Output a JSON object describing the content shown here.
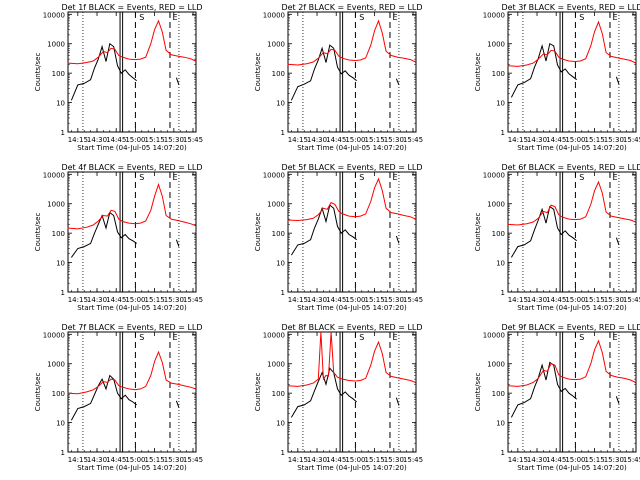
{
  "colors": {
    "events": "#000000",
    "lld": "#ff0000",
    "axes": "#000000"
  },
  "shared": {
    "xlabel": "Start Time (04-Jul-05 14:07:20)",
    "ylabel": "Counts/sec",
    "x_ticks": [
      "14:15",
      "14:30",
      "14:45",
      "15:00",
      "15:15",
      "15:30",
      "15:45"
    ],
    "y_ticks": [
      "1",
      "10",
      "100",
      "1000",
      "10000"
    ],
    "xlim": [
      "14:07:20",
      "15:47:20"
    ],
    "ylim": [
      1,
      12000
    ],
    "y_scale": "log",
    "markers": {
      "dotted": [
        "14:19",
        "15:34"
      ],
      "solid": [
        "14:48",
        "14:50"
      ],
      "dashed": [
        "15:00",
        "15:27"
      ],
      "letters": [
        {
          "text": "S",
          "at": "15:03"
        },
        {
          "text": "E",
          "at": "15:29"
        }
      ]
    }
  },
  "chart_data": [
    {
      "type": "line",
      "title": "Det 1f BLACK = Events, RED = LLD",
      "series": [
        {
          "name": "Events",
          "x": [
            "14:10",
            "14:15",
            "14:20",
            "14:25",
            "14:28",
            "14:31",
            "14:34",
            "14:37",
            "14:40",
            "14:43",
            "14:46",
            "14:49",
            "14:52",
            "14:55",
            "14:58",
            "15:01",
            "15:32",
            "15:34"
          ],
          "y": [
            12,
            40,
            45,
            60,
            150,
            300,
            800,
            250,
            1000,
            800,
            180,
            100,
            130,
            90,
            70,
            55,
            70,
            40
          ]
        },
        {
          "name": "LLD",
          "x": [
            "14:07",
            "14:15",
            "14:22",
            "14:27",
            "14:31",
            "14:35",
            "14:38",
            "14:41",
            "14:44",
            "14:47",
            "14:50",
            "14:55",
            "15:00",
            "15:04",
            "15:08",
            "15:12",
            "15:15",
            "15:18",
            "15:21",
            "15:24",
            "15:28",
            "15:33",
            "15:38",
            "15:43",
            "15:47"
          ],
          "y": [
            220,
            210,
            230,
            260,
            350,
            550,
            500,
            700,
            650,
            400,
            350,
            300,
            290,
            300,
            350,
            1000,
            3000,
            6000,
            2500,
            600,
            420,
            380,
            350,
            310,
            260
          ]
        }
      ]
    },
    {
      "type": "line",
      "title": "Det 2f BLACK = Events, RED = LLD",
      "series": [
        {
          "name": "Events",
          "x": [
            "14:10",
            "14:15",
            "14:20",
            "14:25",
            "14:28",
            "14:31",
            "14:34",
            "14:37",
            "14:40",
            "14:43",
            "14:46",
            "14:49",
            "14:52",
            "14:55",
            "14:58",
            "15:01",
            "15:32",
            "15:34"
          ],
          "y": [
            12,
            35,
            42,
            55,
            140,
            280,
            700,
            230,
            900,
            700,
            160,
            95,
            120,
            85,
            70,
            55,
            65,
            40
          ]
        },
        {
          "name": "LLD",
          "x": [
            "14:07",
            "14:15",
            "14:22",
            "14:27",
            "14:31",
            "14:35",
            "14:38",
            "14:41",
            "14:44",
            "14:47",
            "14:50",
            "14:55",
            "15:00",
            "15:04",
            "15:08",
            "15:12",
            "15:15",
            "15:18",
            "15:21",
            "15:24",
            "15:28",
            "15:33",
            "15:38",
            "15:43",
            "15:47"
          ],
          "y": [
            200,
            190,
            210,
            240,
            320,
            500,
            460,
            650,
            600,
            380,
            320,
            280,
            270,
            280,
            330,
            900,
            2800,
            6000,
            2300,
            550,
            400,
            350,
            320,
            290,
            240
          ]
        }
      ]
    },
    {
      "type": "line",
      "title": "Det 3f BLACK = Events, RED = LLD",
      "series": [
        {
          "name": "Events",
          "x": [
            "14:10",
            "14:15",
            "14:20",
            "14:25",
            "14:28",
            "14:31",
            "14:34",
            "14:37",
            "14:40",
            "14:43",
            "14:46",
            "14:49",
            "14:52",
            "14:55",
            "14:58",
            "15:01",
            "15:32",
            "15:34"
          ],
          "y": [
            15,
            40,
            48,
            65,
            160,
            320,
            850,
            260,
            1000,
            850,
            190,
            110,
            140,
            95,
            75,
            60,
            75,
            42
          ]
        },
        {
          "name": "LLD",
          "x": [
            "14:07",
            "14:15",
            "14:22",
            "14:27",
            "14:31",
            "14:35",
            "14:38",
            "14:41",
            "14:44",
            "14:47",
            "14:50",
            "14:55",
            "15:00",
            "15:04",
            "15:08",
            "15:12",
            "15:15",
            "15:18",
            "15:21",
            "15:24",
            "15:28",
            "15:33",
            "15:38",
            "15:43",
            "15:47"
          ],
          "y": [
            180,
            170,
            190,
            220,
            300,
            450,
            420,
            600,
            560,
            350,
            300,
            260,
            250,
            260,
            310,
            850,
            2600,
            5500,
            2200,
            500,
            370,
            330,
            300,
            270,
            220
          ]
        }
      ]
    },
    {
      "type": "line",
      "title": "Det 4f BLACK = Events, RED = LLD",
      "series": [
        {
          "name": "Events",
          "x": [
            "14:10",
            "14:15",
            "14:20",
            "14:25",
            "14:28",
            "14:31",
            "14:34",
            "14:37",
            "14:40",
            "14:43",
            "14:46",
            "14:49",
            "14:52",
            "14:55",
            "14:58",
            "15:01",
            "15:32",
            "15:34"
          ],
          "y": [
            15,
            30,
            35,
            45,
            100,
            200,
            400,
            150,
            500,
            400,
            110,
            70,
            90,
            65,
            55,
            45,
            60,
            35
          ]
        },
        {
          "name": "LLD",
          "x": [
            "14:07",
            "14:15",
            "14:22",
            "14:27",
            "14:31",
            "14:35",
            "14:38",
            "14:41",
            "14:44",
            "14:47",
            "14:50",
            "14:55",
            "15:00",
            "15:04",
            "15:08",
            "15:12",
            "15:15",
            "15:18",
            "15:21",
            "15:24",
            "15:28",
            "15:33",
            "15:38",
            "15:43",
            "15:47"
          ],
          "y": [
            150,
            140,
            160,
            190,
            260,
            400,
            380,
            600,
            550,
            300,
            250,
            220,
            210,
            220,
            260,
            600,
            1800,
            4500,
            1800,
            400,
            300,
            270,
            240,
            210,
            180
          ]
        }
      ]
    },
    {
      "type": "line",
      "title": "Det 5f BLACK = Events, RED = LLD",
      "series": [
        {
          "name": "Events",
          "x": [
            "14:10",
            "14:15",
            "14:20",
            "14:25",
            "14:28",
            "14:31",
            "14:34",
            "14:37",
            "14:40",
            "14:43",
            "14:46",
            "14:49",
            "14:52",
            "14:55",
            "14:58",
            "15:01",
            "15:32",
            "15:34"
          ],
          "y": [
            18,
            40,
            45,
            60,
            150,
            300,
            700,
            250,
            900,
            700,
            170,
            100,
            130,
            90,
            75,
            60,
            80,
            45
          ]
        },
        {
          "name": "LLD",
          "x": [
            "14:07",
            "14:15",
            "14:22",
            "14:27",
            "14:31",
            "14:35",
            "14:38",
            "14:41",
            "14:44",
            "14:47",
            "14:50",
            "14:55",
            "15:00",
            "15:04",
            "15:08",
            "15:12",
            "15:15",
            "15:18",
            "15:21",
            "15:24",
            "15:28",
            "15:33",
            "15:38",
            "15:43",
            "15:47"
          ],
          "y": [
            280,
            270,
            290,
            320,
            420,
            700,
            650,
            1100,
            950,
            550,
            450,
            380,
            360,
            380,
            450,
            1200,
            3500,
            7000,
            2800,
            700,
            500,
            450,
            400,
            360,
            300
          ]
        }
      ]
    },
    {
      "type": "line",
      "title": "Det 6f BLACK = Events, RED = LLD",
      "series": [
        {
          "name": "Events",
          "x": [
            "14:10",
            "14:15",
            "14:20",
            "14:25",
            "14:28",
            "14:31",
            "14:34",
            "14:37",
            "14:40",
            "14:43",
            "14:46",
            "14:49",
            "14:52",
            "14:55",
            "14:58",
            "15:01",
            "15:32",
            "15:34"
          ],
          "y": [
            15,
            35,
            40,
            55,
            130,
            280,
            650,
            220,
            800,
            650,
            150,
            90,
            120,
            85,
            70,
            55,
            70,
            40
          ]
        },
        {
          "name": "LLD",
          "x": [
            "14:07",
            "14:15",
            "14:22",
            "14:27",
            "14:31",
            "14:35",
            "14:38",
            "14:41",
            "14:44",
            "14:47",
            "14:50",
            "14:55",
            "15:00",
            "15:04",
            "15:08",
            "15:12",
            "15:15",
            "15:18",
            "15:21",
            "15:24",
            "15:28",
            "15:33",
            "15:38",
            "15:43",
            "15:47"
          ],
          "y": [
            200,
            190,
            210,
            240,
            320,
            550,
            500,
            900,
            800,
            420,
            350,
            300,
            290,
            300,
            360,
            950,
            2800,
            5500,
            2300,
            520,
            380,
            340,
            310,
            280,
            240
          ]
        }
      ]
    },
    {
      "type": "line",
      "title": "Det 7f BLACK = Events, RED = LLD",
      "series": [
        {
          "name": "Events",
          "x": [
            "14:10",
            "14:15",
            "14:20",
            "14:25",
            "14:28",
            "14:31",
            "14:34",
            "14:37",
            "14:40",
            "14:43",
            "14:46",
            "14:49",
            "14:52",
            "14:55",
            "14:58",
            "15:01",
            "15:32",
            "15:34"
          ],
          "y": [
            12,
            30,
            35,
            45,
            90,
            180,
            300,
            140,
            400,
            300,
            100,
            65,
            85,
            60,
            50,
            40,
            55,
            32
          ]
        },
        {
          "name": "LLD",
          "x": [
            "14:07",
            "14:15",
            "14:22",
            "14:27",
            "14:31",
            "14:35",
            "14:38",
            "14:41",
            "14:44",
            "14:47",
            "14:50",
            "14:55",
            "15:00",
            "15:04",
            "15:08",
            "15:12",
            "15:15",
            "15:18",
            "15:21",
            "15:24",
            "15:28",
            "15:33",
            "15:38",
            "15:43",
            "15:47"
          ],
          "y": [
            100,
            95,
            110,
            130,
            170,
            250,
            230,
            300,
            280,
            180,
            160,
            140,
            130,
            140,
            170,
            400,
            1200,
            2500,
            1100,
            280,
            220,
            200,
            180,
            160,
            140
          ]
        }
      ]
    },
    {
      "type": "line",
      "title": "Det 8f BLACK = Events, RED = LLD",
      "series": [
        {
          "name": "Events",
          "x": [
            "14:10",
            "14:15",
            "14:20",
            "14:25",
            "14:28",
            "14:31",
            "14:34",
            "14:37",
            "14:40",
            "14:43",
            "14:46",
            "14:49",
            "14:52",
            "14:55",
            "14:58",
            "15:01",
            "15:32",
            "15:34"
          ],
          "y": [
            15,
            35,
            40,
            55,
            120,
            250,
            500,
            200,
            700,
            500,
            140,
            85,
            110,
            80,
            65,
            50,
            70,
            38
          ]
        },
        {
          "name": "LLD",
          "x": [
            "14:07",
            "14:15",
            "14:22",
            "14:27",
            "14:31",
            "14:33",
            "14:35",
            "14:37",
            "14:39",
            "14:41",
            "14:43",
            "14:44",
            "14:46",
            "14:50",
            "14:55",
            "15:00",
            "15:04",
            "15:08",
            "15:12",
            "15:15",
            "15:18",
            "15:21",
            "15:24",
            "15:28",
            "15:33",
            "15:38",
            "15:43",
            "15:47"
          ],
          "y": [
            180,
            170,
            190,
            220,
            300,
            12000,
            300,
            400,
            380,
            12000,
            500,
            450,
            350,
            300,
            270,
            260,
            270,
            320,
            900,
            2700,
            5500,
            2200,
            500,
            370,
            330,
            300,
            270,
            230
          ]
        }
      ]
    },
    {
      "type": "line",
      "title": "Det 9f BLACK = Events, RED = LLD",
      "series": [
        {
          "name": "Events",
          "x": [
            "14:10",
            "14:15",
            "14:20",
            "14:25",
            "14:28",
            "14:31",
            "14:34",
            "14:37",
            "14:40",
            "14:43",
            "14:46",
            "14:49",
            "14:52",
            "14:55",
            "14:58",
            "15:01",
            "15:32",
            "15:34"
          ],
          "y": [
            15,
            40,
            48,
            65,
            160,
            330,
            900,
            280,
            1100,
            900,
            200,
            115,
            145,
            100,
            80,
            62,
            78,
            44
          ]
        },
        {
          "name": "LLD",
          "x": [
            "14:07",
            "14:15",
            "14:22",
            "14:27",
            "14:31",
            "14:35",
            "14:38",
            "14:41",
            "14:44",
            "14:47",
            "14:50",
            "14:55",
            "15:00",
            "15:04",
            "15:08",
            "15:12",
            "15:15",
            "15:18",
            "15:21",
            "15:24",
            "15:28",
            "15:33",
            "15:38",
            "15:43",
            "15:47"
          ],
          "y": [
            180,
            170,
            190,
            230,
            320,
            600,
            550,
            1000,
            900,
            420,
            350,
            300,
            290,
            300,
            360,
            1000,
            3000,
            6000,
            2400,
            550,
            400,
            350,
            320,
            280,
            230
          ]
        }
      ]
    }
  ]
}
